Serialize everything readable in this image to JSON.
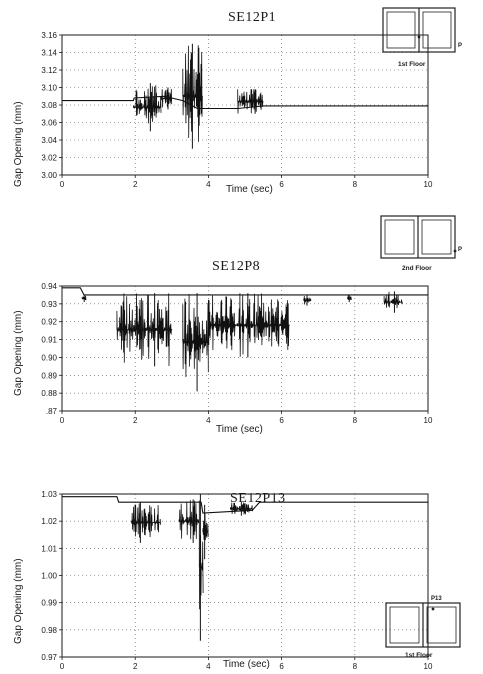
{
  "chart_data": [
    {
      "type": "line",
      "title": "SE12P1",
      "xlabel": "Time (sec)",
      "ylabel": "Gap Opening (mm)",
      "xlim": [
        0,
        10
      ],
      "ylim": [
        3.0,
        3.16
      ],
      "xticks": [
        "0",
        "2",
        "4",
        "6",
        "8",
        "10"
      ],
      "yticks": [
        "3.00",
        "3.02",
        "3.04",
        "3.06",
        "3.08",
        "3.10",
        "3.12",
        "3.14",
        "3.16"
      ],
      "grid": true,
      "inset": {
        "label": "1st Floor",
        "marker": "P"
      },
      "baseline": [
        [
          0,
          3.085
        ],
        [
          1.95,
          3.085
        ],
        [
          1.97,
          3.088
        ],
        [
          2.8,
          3.09
        ],
        [
          3.3,
          3.085
        ],
        [
          3.7,
          3.076
        ],
        [
          3.85,
          3.076
        ],
        [
          4.8,
          3.076
        ],
        [
          5.5,
          3.079
        ],
        [
          10,
          3.079
        ]
      ],
      "bursts": [
        {
          "t": [
            1.95,
            2.7
          ],
          "min": 3.05,
          "max": 3.105
        },
        {
          "t": [
            2.7,
            3.0
          ],
          "min": 3.075,
          "max": 3.1
        },
        {
          "t": [
            3.3,
            3.85
          ],
          "min": 3.03,
          "max": 3.15
        },
        {
          "t": [
            4.8,
            5.5
          ],
          "min": 3.07,
          "max": 3.098
        }
      ]
    },
    {
      "type": "line",
      "title": "SE12P8",
      "xlabel": "Time (sec)",
      "ylabel": "Gap Opening (mm)",
      "xlim": [
        0,
        10
      ],
      "ylim": [
        0.87,
        0.94
      ],
      "xticks": [
        "0",
        "2",
        "4",
        "6",
        "8",
        "10"
      ],
      "yticks": [
        ".87",
        "0.88",
        "0.89",
        "0.90",
        "0.91",
        "0.92",
        "0.93",
        "0.94"
      ],
      "grid": true,
      "inset": {
        "label": "2nd Floor",
        "marker": "P"
      },
      "baseline": [
        [
          0,
          0.939
        ],
        [
          0.5,
          0.939
        ],
        [
          0.6,
          0.935
        ],
        [
          10,
          0.935
        ]
      ],
      "bursts": [
        {
          "t": [
            0.55,
            0.65
          ],
          "min": 0.931,
          "max": 0.935
        },
        {
          "t": [
            1.5,
            3.0
          ],
          "min": 0.895,
          "max": 0.936
        },
        {
          "t": [
            3.3,
            4.0
          ],
          "min": 0.881,
          "max": 0.936
        },
        {
          "t": [
            4.0,
            6.2
          ],
          "min": 0.9,
          "max": 0.936
        },
        {
          "t": [
            6.6,
            6.8
          ],
          "min": 0.929,
          "max": 0.935
        },
        {
          "t": [
            7.8,
            7.9
          ],
          "min": 0.931,
          "max": 0.935
        },
        {
          "t": [
            8.8,
            9.3
          ],
          "min": 0.925,
          "max": 0.937
        }
      ]
    },
    {
      "type": "line",
      "title": "SE12P13",
      "xlabel": "Time (sec)",
      "ylabel": "Gap Opening (mm)",
      "xlim": [
        0,
        10
      ],
      "ylim": [
        0.97,
        1.03
      ],
      "xticks": [
        "0",
        "2",
        "4",
        "6",
        "8",
        "10"
      ],
      "yticks": [
        "0.97",
        "0.98",
        "0.99",
        "1.00",
        "1.01",
        "1.02",
        "1.03"
      ],
      "grid": true,
      "inset": {
        "label": "1st Floor",
        "marker": "P13"
      },
      "baseline": [
        [
          0,
          1.029
        ],
        [
          1.5,
          1.029
        ],
        [
          1.55,
          1.027
        ],
        [
          3.8,
          1.027
        ],
        [
          3.85,
          1.023
        ],
        [
          5.2,
          1.024
        ],
        [
          5.4,
          1.027
        ],
        [
          10,
          1.027
        ]
      ],
      "bursts": [
        {
          "t": [
            1.9,
            2.7
          ],
          "min": 1.012,
          "max": 1.027
        },
        {
          "t": [
            3.2,
            3.75
          ],
          "min": 1.012,
          "max": 1.028
        },
        {
          "t": [
            3.75,
            3.85
          ],
          "min": 0.976,
          "max": 1.03
        },
        {
          "t": [
            3.85,
            4.0
          ],
          "min": 1.006,
          "max": 1.026
        },
        {
          "t": [
            4.6,
            5.2
          ],
          "min": 1.022,
          "max": 1.027
        }
      ]
    }
  ]
}
